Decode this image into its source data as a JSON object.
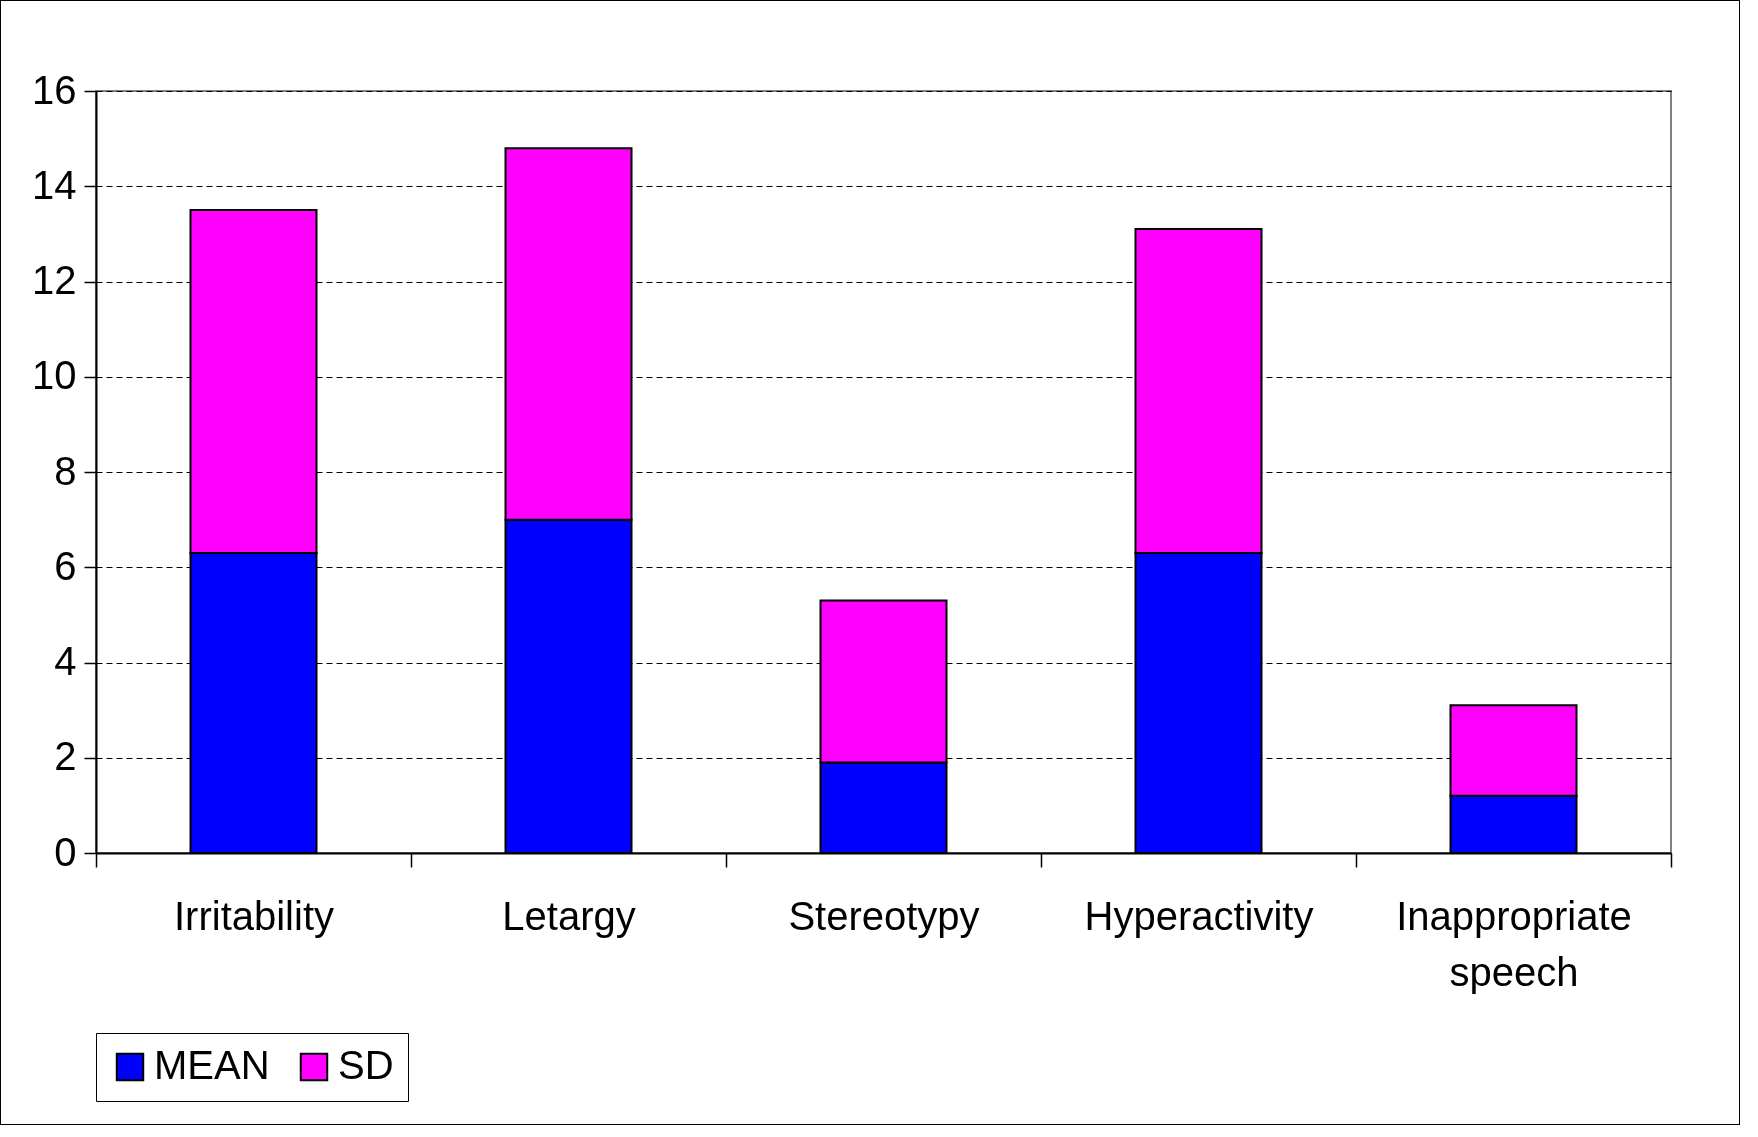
{
  "chart_data": {
    "type": "bar",
    "stacked": true,
    "categories": [
      "Irritability",
      "Letargy",
      "Stereotypy",
      "Hyperactivity",
      "Inappropriate speech"
    ],
    "series": [
      {
        "name": "MEAN",
        "color": "#0000ff",
        "values": [
          6.3,
          7.0,
          1.9,
          6.3,
          1.2
        ]
      },
      {
        "name": "SD",
        "color": "#ff00ff",
        "values": [
          7.2,
          7.8,
          3.4,
          6.8,
          1.9
        ]
      }
    ],
    "ylim": [
      0,
      16
    ],
    "yticks": [
      0,
      2,
      4,
      6,
      8,
      10,
      12,
      14,
      16
    ],
    "grid": "y",
    "legend": "bottom"
  }
}
